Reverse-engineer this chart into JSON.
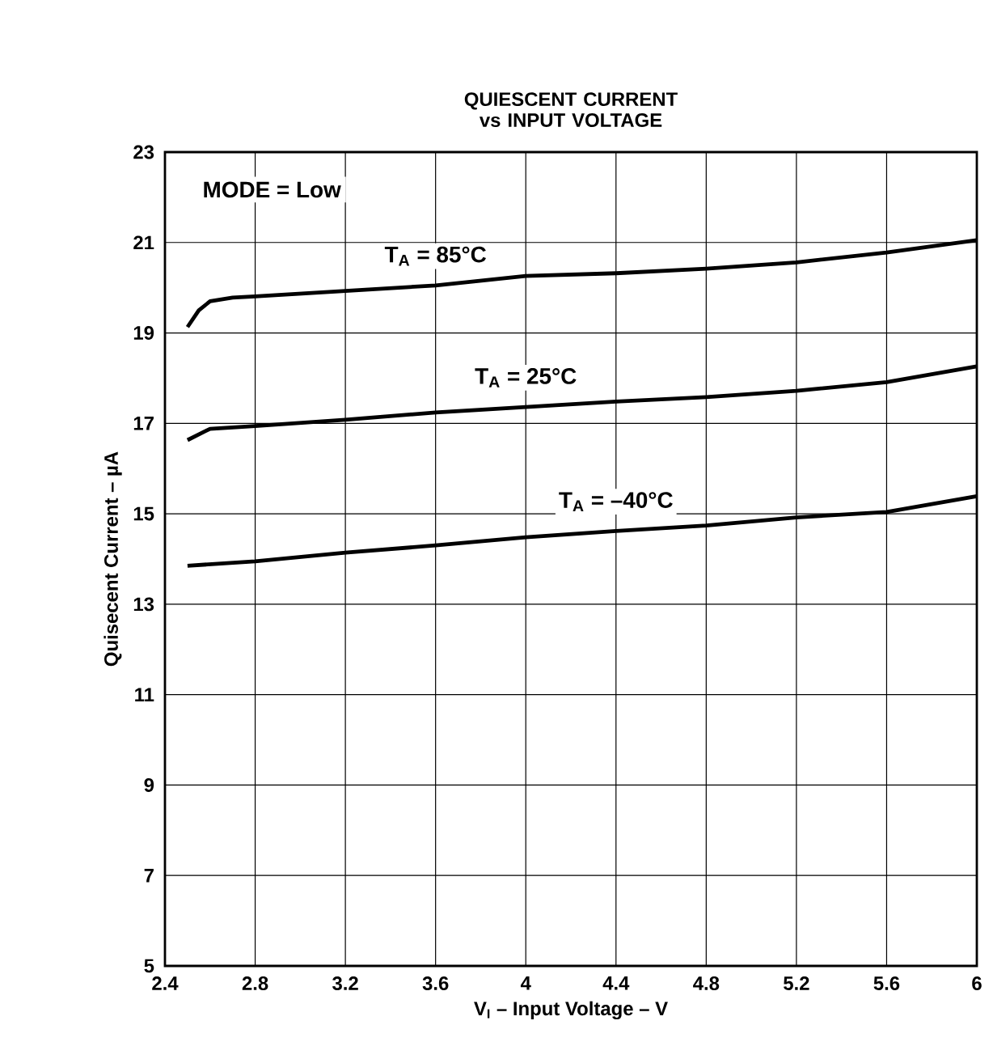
{
  "chart_data": {
    "type": "line",
    "title": "QUIESCENT CURRENT vs INPUT VOLTAGE",
    "xlabel": "V$_{I}$ – Input Voltage – V",
    "ylabel": "Quisecent Current – µA",
    "annotations": [
      "MODE = Low"
    ],
    "xlim": [
      2.4,
      6
    ],
    "ylim": [
      5,
      23
    ],
    "xticks": [
      2.4,
      2.8,
      3.2,
      3.6,
      4,
      4.4,
      4.8,
      5.2,
      5.6,
      6
    ],
    "yticks": [
      5,
      7,
      9,
      11,
      13,
      15,
      17,
      19,
      21,
      23
    ],
    "grid": true,
    "marker": "none",
    "line_style": "solid",
    "series": [
      {
        "name": "T$_{A}$ = 85°C",
        "color": "#000000",
        "x": [
          2.5,
          2.55,
          2.6,
          2.7,
          2.8,
          3.2,
          3.6,
          4.0,
          4.4,
          4.8,
          5.2,
          5.6,
          6.0
        ],
        "values": [
          19.13,
          19.5,
          19.7,
          19.78,
          19.81,
          19.93,
          20.05,
          20.26,
          20.32,
          20.42,
          20.56,
          20.78,
          21.05
        ]
      },
      {
        "name": "T$_{A}$ = 25°C",
        "color": "#000000",
        "x": [
          2.5,
          2.6,
          2.8,
          3.2,
          3.6,
          4.0,
          4.4,
          4.8,
          5.2,
          5.6,
          6.0
        ],
        "values": [
          16.63,
          16.88,
          16.94,
          17.08,
          17.24,
          17.36,
          17.48,
          17.58,
          17.72,
          17.91,
          18.26
        ]
      },
      {
        "name": "T$_{A}$ = –40°C",
        "color": "#000000",
        "x": [
          2.5,
          2.8,
          3.2,
          3.6,
          4.0,
          4.4,
          4.8,
          5.2,
          5.6,
          6.0
        ],
        "values": [
          13.85,
          13.95,
          14.14,
          14.3,
          14.48,
          14.62,
          14.74,
          14.92,
          15.04,
          15.39
        ]
      }
    ]
  }
}
